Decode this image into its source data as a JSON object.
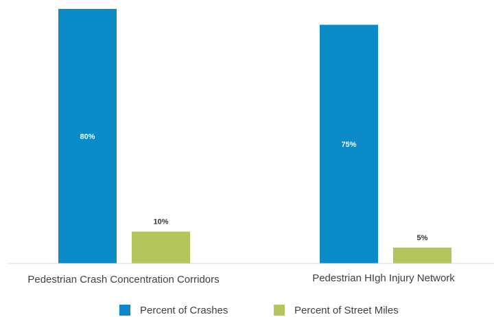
{
  "chart_data": {
    "type": "bar",
    "categories": [
      "Pedestrian Crash Concentration Corridors",
      "Pedestrian HIgh Injury Network"
    ],
    "series": [
      {
        "name": "Percent of Crashes",
        "values": [
          80,
          75
        ],
        "labels": [
          "80%",
          "75%"
        ],
        "color": "#0a8ac6",
        "label_color": "#ffffff",
        "label_inside": true
      },
      {
        "name": "Percent of Street Miles",
        "values": [
          10,
          5
        ],
        "labels": [
          "10%",
          "5%"
        ],
        "color": "#b5c45a",
        "label_color": "#333333",
        "label_inside": false
      }
    ],
    "ylim": [
      0,
      80
    ],
    "grid": false,
    "legend_position": "bottom",
    "title": "",
    "xlabel": "",
    "ylabel": ""
  }
}
